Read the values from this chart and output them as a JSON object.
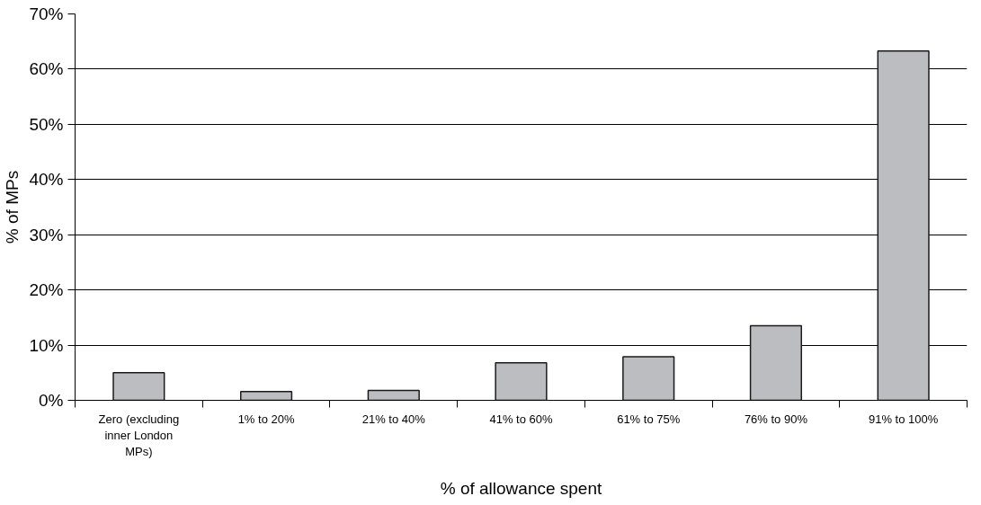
{
  "chart_data": {
    "type": "bar",
    "xlabel": "% of allowance spent",
    "ylabel": "% of MPs",
    "categories": [
      "Zero (excluding inner London MPs)",
      "1% to 20%",
      "21% to 40%",
      "41% to 60%",
      "61% to 75%",
      "76% to 90%",
      "91% to 100%"
    ],
    "values": [
      5.0,
      1.6,
      1.8,
      6.8,
      7.9,
      13.5,
      63.3
    ],
    "color": "#bcbdc1",
    "ylim": [
      0,
      70
    ],
    "yticks": [
      {
        "value": 0,
        "label": "0%"
      },
      {
        "value": 10,
        "label": "10%"
      },
      {
        "value": 20,
        "label": "20%"
      },
      {
        "value": 30,
        "label": "30%"
      },
      {
        "value": 40,
        "label": "40%"
      },
      {
        "value": 50,
        "label": "50%"
      },
      {
        "value": 60,
        "label": "60%"
      },
      {
        "value": 70,
        "label": "70%"
      }
    ],
    "grid": "y"
  }
}
